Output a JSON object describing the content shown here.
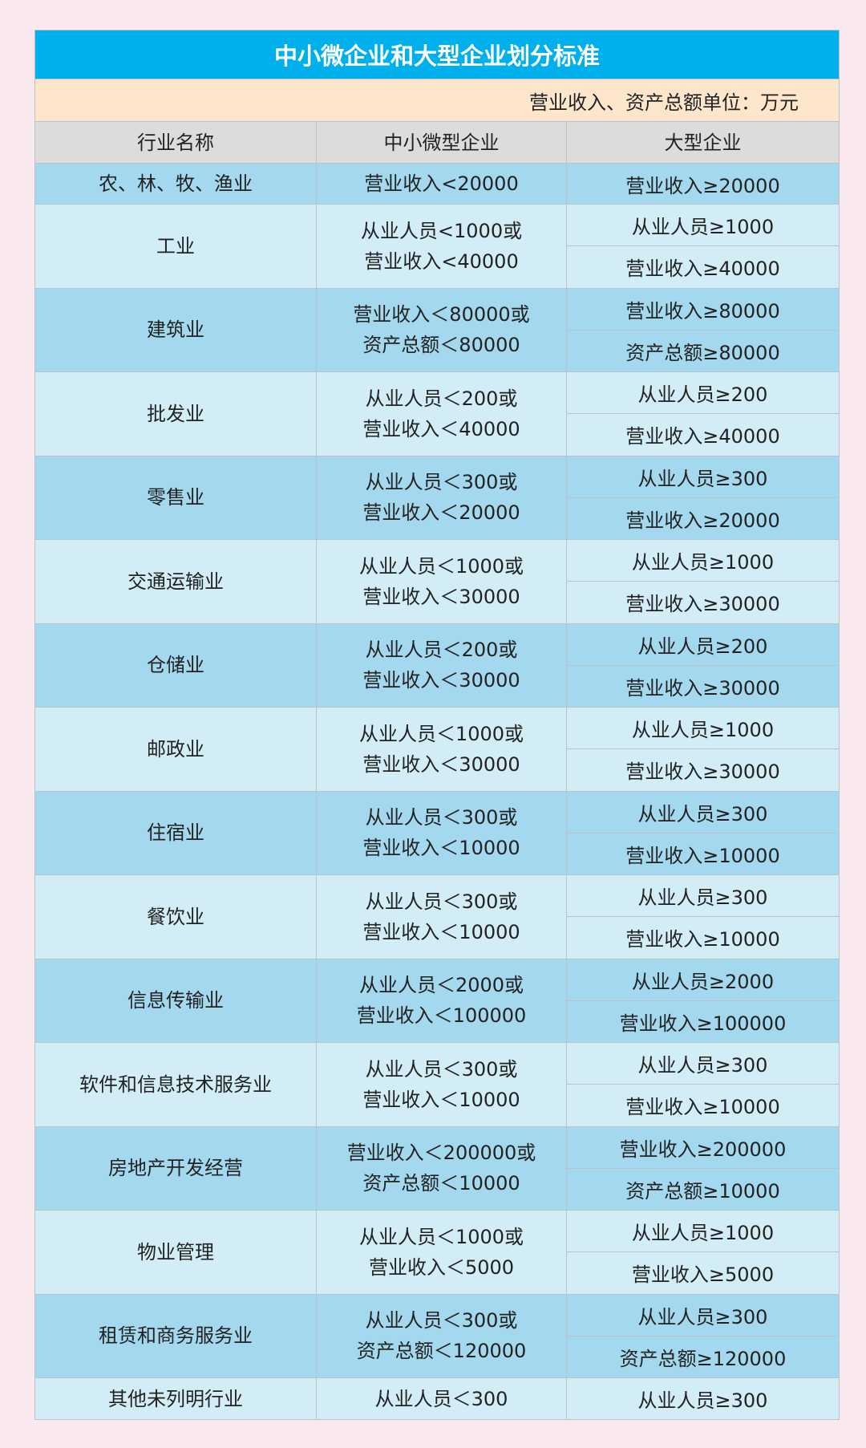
{
  "title": "中小微企业和大型企业划分标准",
  "unit_note": "营业收入、资产总额单位：万元",
  "colors": {
    "title_bg": "#00b0ec",
    "unit_bg": "#fde6cc",
    "header_bg": "#dcdcdc",
    "row_dark": "#a3d8ee",
    "row_light": "#d3edf7",
    "page_bg": "#f9e9ef"
  },
  "headers": [
    "行业名称",
    "中小微型企业",
    "大型企业"
  ],
  "rows": [
    {
      "industry": "农、林、牧、渔业",
      "sme": [
        "营业收入<20000"
      ],
      "large": [
        "营业收入≥20000"
      ]
    },
    {
      "industry": "工业",
      "sme": [
        "从业人员<1000或",
        "营业收入<40000"
      ],
      "large": [
        "从业人员≥1000",
        "营业收入≥40000"
      ]
    },
    {
      "industry": "建筑业",
      "sme": [
        "营业收入＜80000或",
        "资产总额＜80000"
      ],
      "large": [
        "营业收入≥80000",
        "资产总额≥80000"
      ]
    },
    {
      "industry": "批发业",
      "sme": [
        "从业人员＜200或",
        "营业收入＜40000"
      ],
      "large": [
        "从业人员≥200",
        "营业收入≥40000"
      ]
    },
    {
      "industry": "零售业",
      "sme": [
        "从业人员＜300或",
        "营业收入＜20000"
      ],
      "large": [
        "从业人员≥300",
        "营业收入≥20000"
      ]
    },
    {
      "industry": "交通运输业",
      "sme": [
        "从业人员＜1000或",
        "营业收入＜30000"
      ],
      "large": [
        "从业人员≥1000",
        "营业收入≥30000"
      ]
    },
    {
      "industry": "仓储业",
      "sme": [
        "从业人员＜200或",
        "营业收入＜30000"
      ],
      "large": [
        "从业人员≥200",
        "营业收入≥30000"
      ]
    },
    {
      "industry": "邮政业",
      "sme": [
        "从业人员＜1000或",
        "营业收入＜30000"
      ],
      "large": [
        "从业人员≥1000",
        "营业收入≥30000"
      ]
    },
    {
      "industry": "住宿业",
      "sme": [
        "从业人员＜300或",
        "营业收入＜10000"
      ],
      "large": [
        "从业人员≥300",
        "营业收入≥10000"
      ]
    },
    {
      "industry": "餐饮业",
      "sme": [
        "从业人员＜300或",
        "营业收入＜10000"
      ],
      "large": [
        "从业人员≥300",
        "营业收入≥10000"
      ]
    },
    {
      "industry": "信息传输业",
      "sme": [
        "从业人员＜2000或",
        "营业收入＜100000"
      ],
      "large": [
        "从业人员≥2000",
        "营业收入≥100000"
      ]
    },
    {
      "industry": "软件和信息技术服务业",
      "sme": [
        "从业人员＜300或",
        "营业收入＜10000"
      ],
      "large": [
        "从业人员≥300",
        "营业收入≥10000"
      ]
    },
    {
      "industry": "房地产开发经营",
      "sme": [
        "营业收入＜200000或",
        "资产总额＜10000"
      ],
      "large": [
        "营业收入≥200000",
        "资产总额≥10000"
      ]
    },
    {
      "industry": "物业管理",
      "sme": [
        "从业人员＜1000或",
        "营业收入＜5000"
      ],
      "large": [
        "从业人员≥1000",
        "营业收入≥5000"
      ]
    },
    {
      "industry": "租赁和商务服务业",
      "sme": [
        "从业人员＜300或",
        "资产总额＜120000"
      ],
      "large": [
        "从业人员≥300",
        "资产总额≥120000"
      ]
    },
    {
      "industry": "其他未列明行业",
      "sme": [
        "从业人员＜300"
      ],
      "large": [
        "从业人员≥300"
      ]
    }
  ]
}
